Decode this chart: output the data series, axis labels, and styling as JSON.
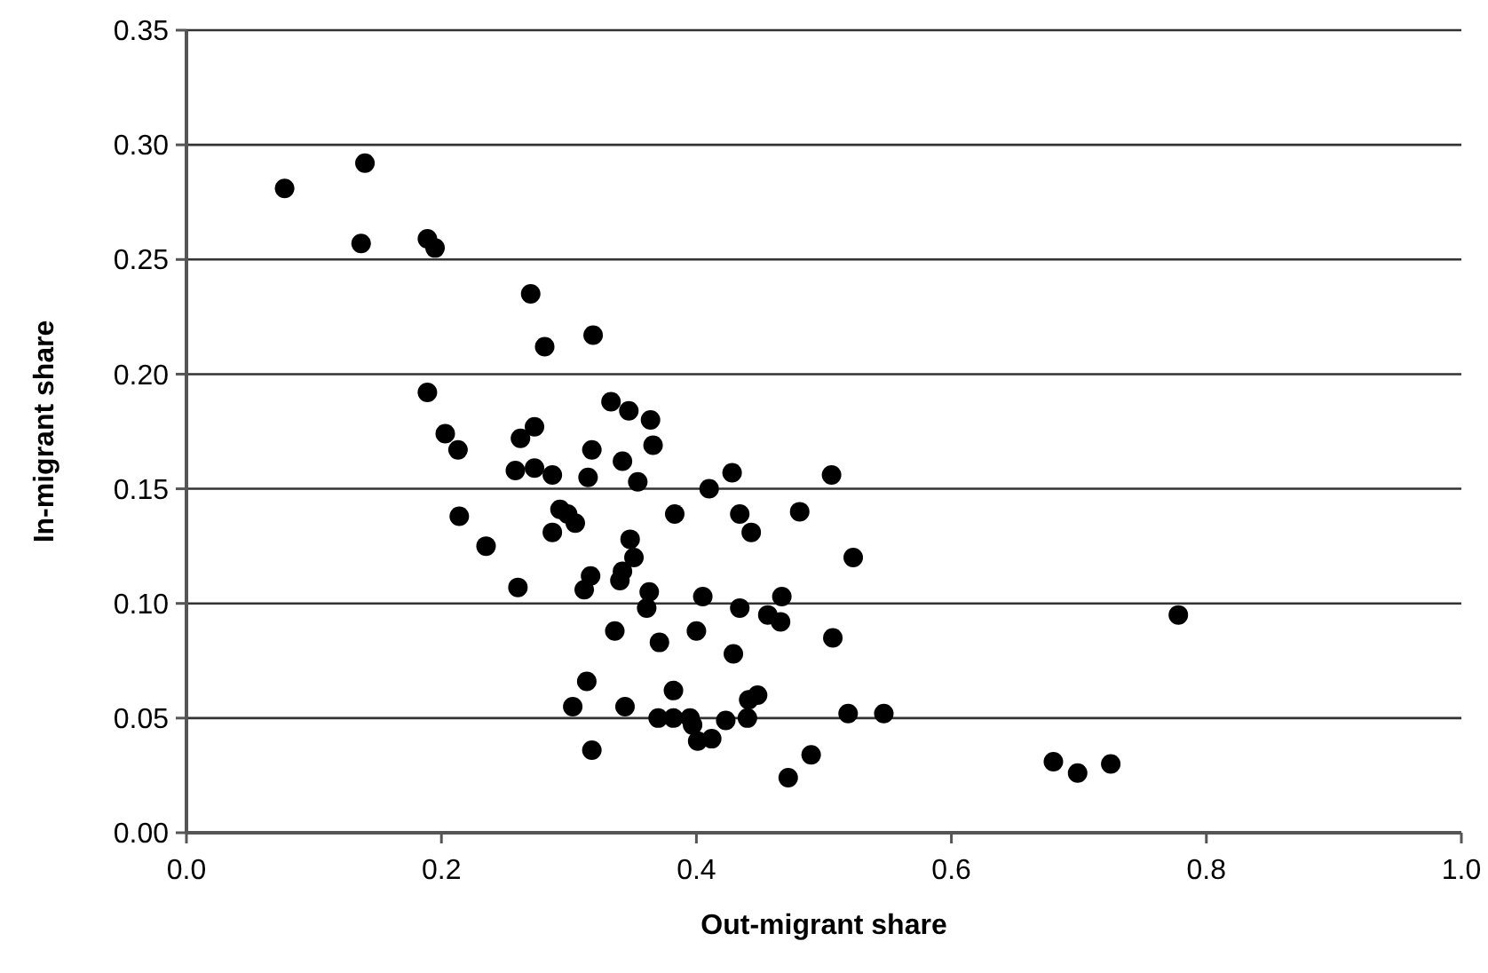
{
  "chart_data": {
    "type": "scatter",
    "xlabel": "Out-migrant share",
    "ylabel": "In-migrant share",
    "xlim": [
      0,
      1
    ],
    "ylim": [
      0,
      0.35
    ],
    "xticks": [
      {
        "value": 0,
        "label": "0.0"
      },
      0.2,
      0.4,
      0.6,
      0.8,
      {
        "value": 1,
        "label": "1.0"
      }
    ],
    "yticks": [
      {
        "value": 0,
        "label": "0.00"
      },
      0.05,
      {
        "value": 0.1,
        "label": "0.10"
      },
      0.15,
      {
        "value": 0.2,
        "label": "0.20"
      },
      0.25,
      {
        "value": 0.3,
        "label": "0.30"
      },
      0.35
    ],
    "grid": "y",
    "marker": "circle",
    "series": [
      {
        "color": "#000000",
        "x": [
          0.077,
          0.14,
          0.137,
          0.189,
          0.195,
          0.27,
          0.281,
          0.319,
          0.189,
          0.203,
          0.213,
          0.262,
          0.273,
          0.258,
          0.273,
          0.287,
          0.318,
          0.315,
          0.333,
          0.347,
          0.364,
          0.366,
          0.342,
          0.354,
          0.214,
          0.235,
          0.287,
          0.293,
          0.305,
          0.299,
          0.26,
          0.317,
          0.312,
          0.348,
          0.351,
          0.342,
          0.34,
          0.363,
          0.361,
          0.383,
          0.41,
          0.428,
          0.506,
          0.434,
          0.443,
          0.481,
          0.523,
          0.405,
          0.434,
          0.456,
          0.467,
          0.466,
          0.336,
          0.371,
          0.4,
          0.429,
          0.507,
          0.314,
          0.303,
          0.344,
          0.382,
          0.37,
          0.382,
          0.395,
          0.397,
          0.401,
          0.412,
          0.423,
          0.44,
          0.441,
          0.448,
          0.519,
          0.547,
          0.318,
          0.472,
          0.49,
          0.778,
          0.68,
          0.699,
          0.725
        ],
        "values": [
          0.281,
          0.292,
          0.257,
          0.259,
          0.255,
          0.235,
          0.212,
          0.217,
          0.192,
          0.174,
          0.167,
          0.172,
          0.177,
          0.158,
          0.159,
          0.156,
          0.167,
          0.155,
          0.188,
          0.184,
          0.18,
          0.169,
          0.162,
          0.153,
          0.138,
          0.125,
          0.131,
          0.141,
          0.135,
          0.139,
          0.107,
          0.112,
          0.106,
          0.128,
          0.12,
          0.114,
          0.11,
          0.105,
          0.098,
          0.139,
          0.15,
          0.157,
          0.156,
          0.139,
          0.131,
          0.14,
          0.12,
          0.103,
          0.098,
          0.095,
          0.103,
          0.092,
          0.088,
          0.083,
          0.088,
          0.078,
          0.085,
          0.066,
          0.055,
          0.055,
          0.062,
          0.05,
          0.05,
          0.05,
          0.047,
          0.04,
          0.041,
          0.049,
          0.05,
          0.058,
          0.06,
          0.052,
          0.052,
          0.036,
          0.024,
          0.034,
          0.095,
          0.031,
          0.026,
          0.03
        ]
      }
    ]
  }
}
